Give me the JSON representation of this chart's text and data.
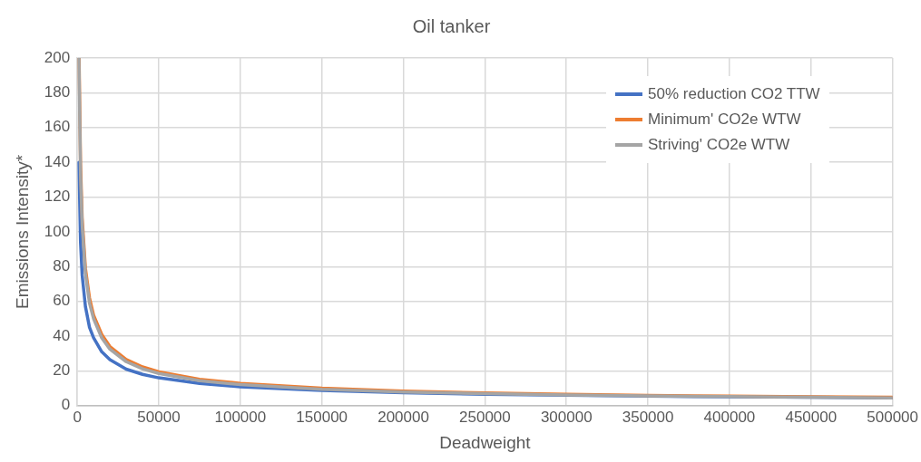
{
  "chart_data": {
    "type": "line",
    "title": "Oil tanker",
    "xlabel": "Deadweight",
    "ylabel": "Emissions Intensity*",
    "xlim": [
      0,
      500000
    ],
    "xticks": [
      0,
      50000,
      100000,
      150000,
      200000,
      250000,
      300000,
      350000,
      400000,
      450000,
      500000
    ],
    "ylim": [
      0,
      200
    ],
    "yticks": [
      0,
      20,
      40,
      60,
      80,
      100,
      120,
      140,
      160,
      180,
      200
    ],
    "grid": true,
    "legend": "top right",
    "marker": "none",
    "line_style": "solid",
    "series": [
      {
        "name": "50% reduction CO2 TTW",
        "color": "#4472c4",
        "x": [
          1000,
          2000,
          3000,
          5000,
          7500,
          10000,
          15000,
          20000,
          30000,
          40000,
          50000,
          75000,
          100000,
          150000,
          200000,
          250000,
          300000,
          350000,
          400000,
          450000,
          500000
        ],
        "values": [
          140,
          94,
          75,
          57,
          45,
          39,
          31,
          26.5,
          21,
          18,
          16,
          12.8,
          10.9,
          8.8,
          7.5,
          6.6,
          6.0,
          5.5,
          5.1,
          4.8,
          4.5
        ]
      },
      {
        "name": "Minimum' CO2e WTW",
        "color": "#ed7d31",
        "x": [
          1100,
          2000,
          3000,
          5000,
          7500,
          10000,
          15000,
          20000,
          30000,
          40000,
          50000,
          75000,
          100000,
          150000,
          200000,
          250000,
          300000,
          350000,
          400000,
          450000,
          500000
        ],
        "values": [
          200,
          139,
          108,
          79,
          62,
          52,
          41,
          34,
          26.6,
          22.3,
          19.5,
          15.2,
          12.8,
          10.0,
          8.4,
          7.3,
          6.5,
          5.9,
          5.5,
          5.1,
          4.8
        ]
      },
      {
        "name": "Striving' CO2e WTW",
        "color": "#a5a5a5",
        "x": [
          1000,
          2000,
          3000,
          5000,
          7500,
          10000,
          15000,
          20000,
          30000,
          40000,
          50000,
          75000,
          100000,
          150000,
          200000,
          250000,
          300000,
          350000,
          400000,
          450000,
          500000
        ],
        "values": [
          200,
          133,
          104,
          76,
          59,
          50,
          39,
          32.5,
          25.3,
          21.2,
          18.5,
          14.4,
          12.1,
          9.4,
          7.9,
          6.9,
          6.2,
          5.6,
          5.2,
          4.8,
          4.5
        ]
      }
    ]
  }
}
